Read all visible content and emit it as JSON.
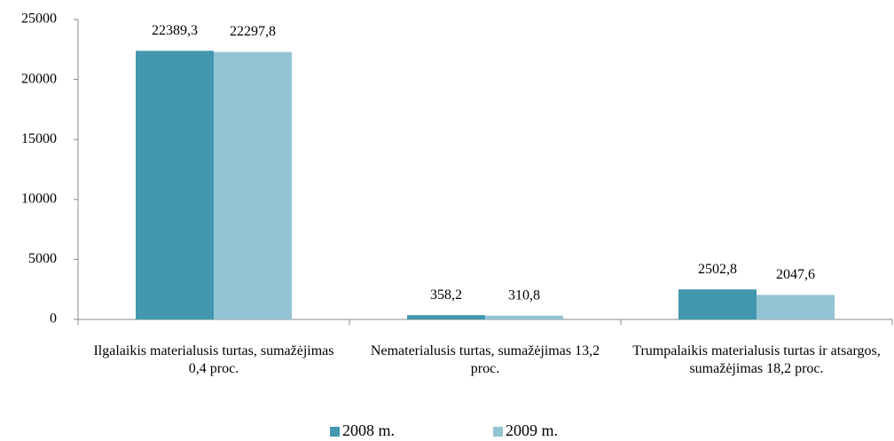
{
  "chart_data": {
    "type": "bar",
    "categories": [
      "Ilgalaikis materialusis turtas, sumažėjimas 0,4 proc.",
      "Nematerialusis turtas, sumažėjimas 13,2 proc.",
      "Trumpalaikis materialusis turtas  ir atsargos, sumažėjimas 18,2 proc."
    ],
    "series": [
      {
        "name": "2008 m.",
        "color": "#4397af",
        "values": [
          22389.3,
          358.2,
          2502.8
        ],
        "value_labels": [
          "22389,3",
          "358,2",
          "2502,8"
        ]
      },
      {
        "name": "2009 m.",
        "color": "#93c4d4",
        "values": [
          22297.8,
          310.8,
          2047.6
        ],
        "value_labels": [
          "22297,8",
          "310,8",
          "2047,6"
        ]
      }
    ],
    "ylim": [
      0,
      25000
    ],
    "yticks": [
      0,
      5000,
      10000,
      15000,
      20000,
      25000
    ],
    "grid": false,
    "legend": "bottom"
  }
}
